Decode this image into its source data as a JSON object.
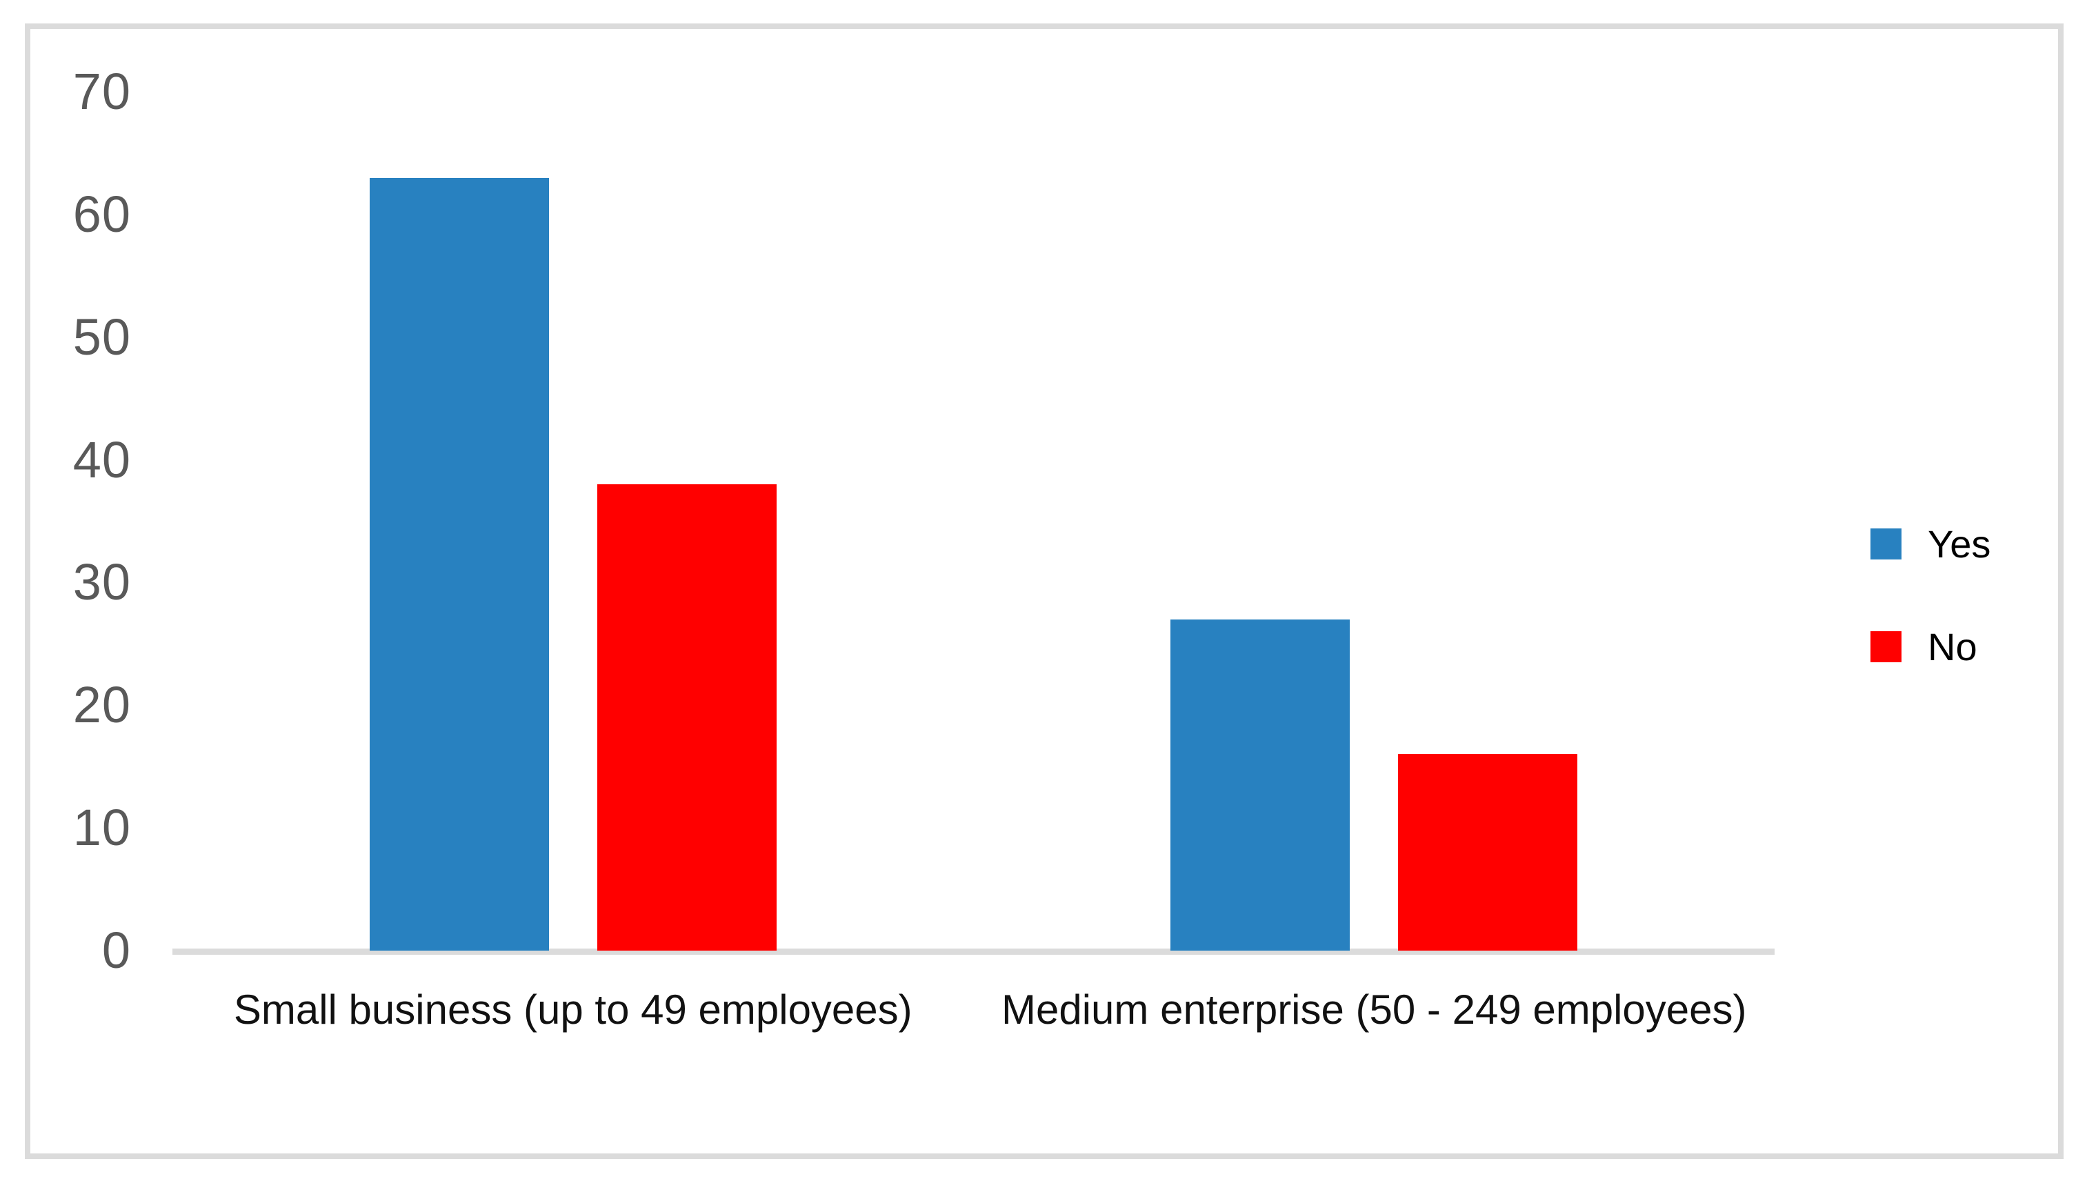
{
  "chart_data": {
    "type": "bar",
    "title": "",
    "xlabel": "",
    "ylabel": "",
    "categories": [
      "Small business (up to 49 employees)",
      "Medium enterprise (50 - 249 employees)"
    ],
    "series": [
      {
        "name": "Yes",
        "color": "#2881c0",
        "values": [
          63,
          27
        ]
      },
      {
        "name": "No",
        "color": "#ff0000",
        "values": [
          38,
          16
        ]
      }
    ],
    "ylim": [
      0,
      70
    ],
    "y_ticks": [
      70,
      60,
      50,
      40,
      30,
      20,
      10,
      0
    ],
    "grid": false,
    "legend_position": "right"
  },
  "colors": {
    "border": "#dbdbdb",
    "axis_line": "#dbdbdb",
    "tick_label": "#595959",
    "category_label": "#111111",
    "legend_label": "#000000",
    "background": "#ffffff"
  }
}
